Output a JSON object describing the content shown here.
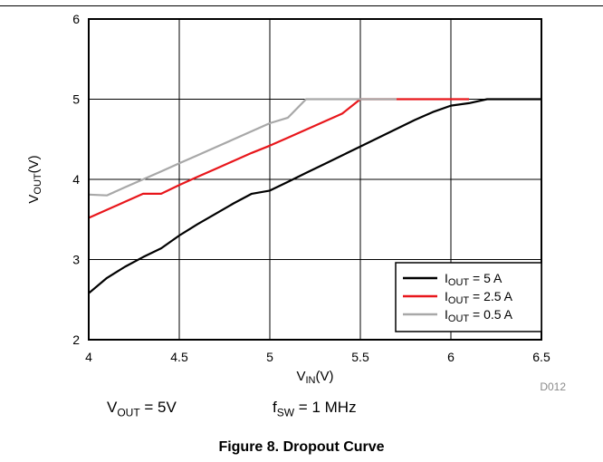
{
  "chart_data": {
    "type": "line",
    "xlabel": "V_IN (V)",
    "xlabel_main": "V",
    "xlabel_sub": "IN",
    "xlabel_unit": "(V)",
    "ylabel_main": "V",
    "ylabel_sub": "OUT",
    "ylabel_unit": "(V)",
    "xlim": [
      4,
      6.5
    ],
    "ylim": [
      2,
      6
    ],
    "xticks": [
      "4",
      "4.5",
      "5",
      "5.5",
      "6",
      "6.5"
    ],
    "yticks": [
      "2",
      "3",
      "4",
      "5",
      "6"
    ],
    "grid": true,
    "legend_position": "bottom-right",
    "series": [
      {
        "name": "I_OUT = 5 A",
        "legend_main": "I",
        "legend_sub": "OUT",
        "legend_rest": " = 5 A",
        "color": "#000000",
        "x": [
          4.0,
          4.1,
          4.2,
          4.3,
          4.4,
          4.5,
          4.6,
          4.7,
          4.8,
          4.9,
          5.0,
          5.1,
          5.2,
          5.3,
          5.4,
          5.5,
          5.6,
          5.7,
          5.8,
          5.9,
          6.0,
          6.1,
          6.2,
          6.3,
          6.4,
          6.5
        ],
        "y": [
          2.58,
          2.77,
          2.91,
          3.03,
          3.14,
          3.3,
          3.44,
          3.57,
          3.7,
          3.82,
          3.86,
          3.97,
          4.08,
          4.19,
          4.3,
          4.41,
          4.52,
          4.63,
          4.74,
          4.84,
          4.92,
          4.95,
          5.0,
          5.0,
          5.0,
          5.0
        ]
      },
      {
        "name": "I_OUT = 2.5 A",
        "legend_main": "I",
        "legend_sub": "OUT",
        "legend_rest": " = 2.5 A",
        "color": "#e8161b",
        "x": [
          4.0,
          4.1,
          4.2,
          4.3,
          4.4,
          4.5,
          4.6,
          4.7,
          4.8,
          4.9,
          5.0,
          5.1,
          5.2,
          5.3,
          5.4,
          5.5,
          5.6,
          5.7,
          5.8,
          5.9,
          6.0,
          6.1
        ],
        "y": [
          3.52,
          3.62,
          3.72,
          3.82,
          3.82,
          3.93,
          4.03,
          4.13,
          4.23,
          4.33,
          4.42,
          4.52,
          4.62,
          4.72,
          4.82,
          5.0,
          5.0,
          5.0,
          5.0,
          5.0,
          5.0,
          5.0
        ]
      },
      {
        "name": "I_OUT = 0.5 A",
        "legend_main": "I",
        "legend_sub": "OUT",
        "legend_rest": " = 0.5 A",
        "color": "#a8a8a8",
        "x": [
          4.0,
          4.1,
          4.2,
          4.3,
          4.4,
          4.5,
          4.6,
          4.7,
          4.8,
          4.9,
          5.0,
          5.1,
          5.2,
          5.3,
          5.4,
          5.5,
          5.6,
          5.7
        ],
        "y": [
          3.81,
          3.8,
          3.9,
          4.0,
          4.1,
          4.2,
          4.3,
          4.4,
          4.5,
          4.6,
          4.7,
          4.77,
          5.0,
          5.0,
          5.0,
          5.0,
          5.0,
          5.0
        ]
      }
    ],
    "figure_code": "D012"
  },
  "conditions": {
    "vout": {
      "main": "V",
      "sub": "OUT",
      "rest": " = 5V"
    },
    "fsw": {
      "main": "f",
      "sub": "SW",
      "rest": " = 1 MHz"
    }
  },
  "caption": "Figure 8. Dropout Curve"
}
